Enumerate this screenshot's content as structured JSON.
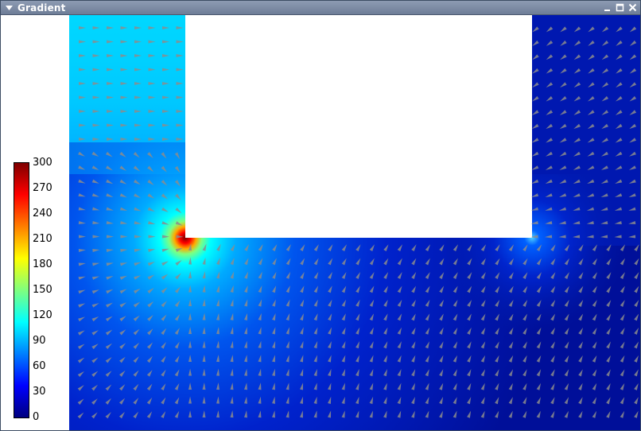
{
  "window": {
    "title": "Gradient",
    "icons": [
      "window-menu-arrow-icon",
      "minimize-icon",
      "maximize-icon",
      "close-icon"
    ]
  },
  "colorbar": {
    "ticks": [
      "300",
      "270",
      "240",
      "210",
      "180",
      "150",
      "120",
      "90",
      "60",
      "30",
      "0"
    ],
    "colormap": [
      "#00007f",
      "#0000ff",
      "#007fff",
      "#00ffff",
      "#7fff7f",
      "#ffff00",
      "#ff7f00",
      "#ff0000",
      "#7f0000"
    ]
  },
  "colors": {
    "titlebar": "#7787a2",
    "field_high": "#00d0ff",
    "field_mid": "#0050f0",
    "field_low": "#0010a0",
    "arrow": "#8c8c8c"
  }
}
